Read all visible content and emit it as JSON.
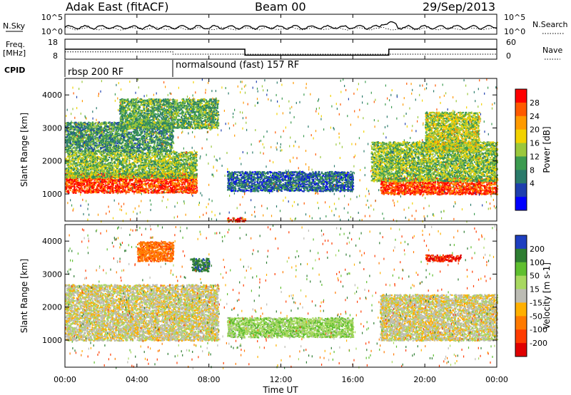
{
  "header": {
    "station": "Adak East (fitACF)",
    "beam": "Beam 00",
    "date": "29/Sep/2013"
  },
  "noise_panel": {
    "left_label": "N.Sky",
    "right_label": "N.Search",
    "left_ticks": [
      "10^5",
      "10^0"
    ],
    "right_ticks": [
      "10^5",
      "10^0"
    ]
  },
  "freq_panel": {
    "left_label_1": "Freq.",
    "left_label_2": "[MHz]",
    "right_label": "Nave",
    "left_ticks": [
      "18",
      "8"
    ],
    "right_ticks": [
      "60",
      "0"
    ],
    "freq_steps": [
      {
        "from": "00:00",
        "to": "10:00",
        "value": 13
      },
      {
        "from": "10:00",
        "to": "18:00",
        "value": 10
      },
      {
        "from": "18:00",
        "to": "24:00",
        "value": 13
      }
    ],
    "nave_steps": [
      {
        "from": "00:00",
        "to": "06:00",
        "value": 22
      },
      {
        "from": "06:00",
        "to": "24:00",
        "value": 15
      }
    ]
  },
  "cpid": {
    "label": "CPID",
    "segments": [
      {
        "start": "00:00",
        "end": "06:00",
        "text": "rbsp 200 RF"
      },
      {
        "start": "06:00",
        "end": "24:00",
        "text": "normalsound (fast) 157 RF"
      }
    ]
  },
  "x_axis": {
    "label": "Time UT",
    "ticks": [
      "00:00",
      "04:00",
      "08:00",
      "12:00",
      "16:00",
      "20:00",
      "00:00"
    ]
  },
  "power_colorbar": {
    "label": "Power [dB]",
    "ticks": [
      "28",
      "24",
      "20",
      "16",
      "12",
      "8",
      "4"
    ],
    "colors": [
      "#ff0000",
      "#ff5a00",
      "#ff9a00",
      "#f2d200",
      "#9bc83c",
      "#3c9b50",
      "#2a7a6a",
      "#1e3fae",
      "#0000ff"
    ]
  },
  "velocity_colorbar": {
    "label": "Velocity [m s-1]",
    "ticks": [
      "200",
      "100",
      "50",
      "15",
      "-15",
      "-50",
      "-100",
      "-200"
    ],
    "colors": [
      "#1e3fc0",
      "#2e7d32",
      "#5fbf2f",
      "#a8d860",
      "#bcbcb4",
      "#ffb000",
      "#ff7a00",
      "#ff3c00",
      "#e00000"
    ]
  },
  "power_panel": {
    "ylabel": "Slant Range [km]",
    "yticks": [
      "4000",
      "3000",
      "2000",
      "1000"
    ]
  },
  "velocity_panel": {
    "ylabel": "Slant Range [km]",
    "yticks": [
      "4000",
      "3000",
      "2000",
      "1000"
    ]
  },
  "chart_data": [
    {
      "type": "line",
      "title": "N.Sky / N.Search",
      "x_range_hours": [
        0,
        24
      ],
      "yscale": "log",
      "ylim": [
        1,
        100000
      ],
      "series": [
        {
          "name": "N.Sky"
        },
        {
          "name": "N.Search"
        }
      ]
    },
    {
      "type": "line",
      "x_range_hours": [
        0,
        24
      ],
      "ylim_left": [
        8,
        18
      ],
      "ylim_right": [
        0,
        60
      ],
      "series": [
        {
          "name": "Freq.",
          "steps": "see freq_panel.freq_steps"
        },
        {
          "name": "Nave",
          "steps": "see freq_panel.nave_steps"
        }
      ]
    },
    {
      "type": "heatmap",
      "xlabel": "Time UT",
      "ylabel": "Slant Range [km]",
      "x_range_hours": [
        0,
        24
      ],
      "ylim": [
        180,
        4500
      ],
      "colorbar": {
        "label": "Power [dB]",
        "range": [
          0,
          30
        ]
      },
      "regions": [
        {
          "t": [
            0.0,
            7.3
          ],
          "range_km": [
            1050,
            1650
          ],
          "power_db": 28
        },
        {
          "t": [
            0.0,
            7.3
          ],
          "range_km": [
            1500,
            2300
          ],
          "power_db": 14
        },
        {
          "t": [
            0.0,
            6.0
          ],
          "range_km": [
            2300,
            3200
          ],
          "power_db": 10
        },
        {
          "t": [
            3.0,
            8.5
          ],
          "range_km": [
            3000,
            3900
          ],
          "power_db": 12
        },
        {
          "t": [
            9.0,
            16.0
          ],
          "range_km": [
            1100,
            1700
          ],
          "power_db": 6
        },
        {
          "t": [
            17.5,
            24.0
          ],
          "range_km": [
            1000,
            1500
          ],
          "power_db": 28
        },
        {
          "t": [
            17.0,
            24.0
          ],
          "range_km": [
            1400,
            2600
          ],
          "power_db": 14
        },
        {
          "t": [
            20.0,
            23.0
          ],
          "range_km": [
            2300,
            3500
          ],
          "power_db": 16
        },
        {
          "t": [
            9.0,
            10.0
          ],
          "range_km": [
            180,
            300
          ],
          "power_db": 28
        }
      ]
    },
    {
      "type": "heatmap",
      "xlabel": "Time UT",
      "ylabel": "Slant Range [km]",
      "x_range_hours": [
        0,
        24
      ],
      "ylim": [
        180,
        4500
      ],
      "colorbar": {
        "label": "Velocity [m s-1]",
        "range": [
          -200,
          200
        ]
      },
      "regions": [
        {
          "t": [
            0.0,
            8.5
          ],
          "range_km": [
            1000,
            2700
          ],
          "velocity_ms": 0
        },
        {
          "t": [
            4.0,
            6.0
          ],
          "range_km": [
            3400,
            4000
          ],
          "velocity_ms": -80
        },
        {
          "t": [
            7.0,
            8.0
          ],
          "range_km": [
            3100,
            3500
          ],
          "velocity_ms": 180
        },
        {
          "t": [
            17.5,
            24.0
          ],
          "range_km": [
            1000,
            2400
          ],
          "velocity_ms": 0
        },
        {
          "t": [
            9.0,
            16.0
          ],
          "range_km": [
            1100,
            1700
          ],
          "velocity_ms": 40
        },
        {
          "t": [
            20.0,
            22.0
          ],
          "range_km": [
            3400,
            3600
          ],
          "velocity_ms": -200
        }
      ]
    }
  ]
}
